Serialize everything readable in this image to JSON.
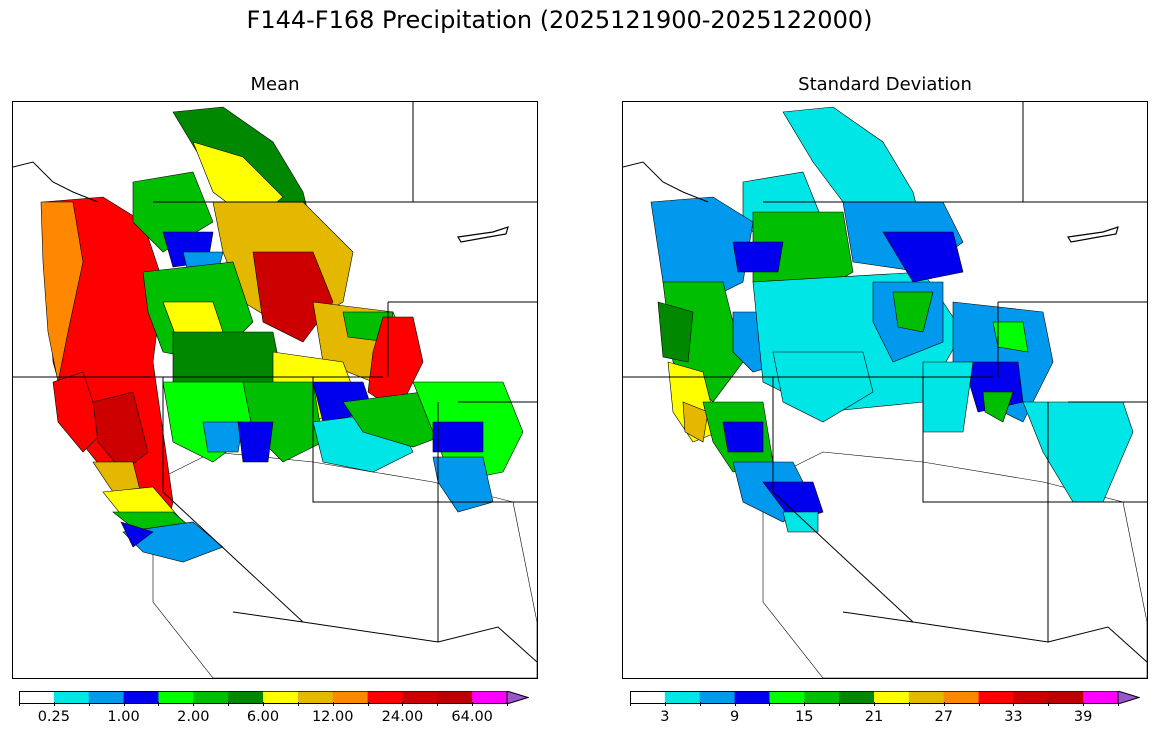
{
  "figure": {
    "title": "F144-F168 Precipitation (2025121900-2025122000)"
  },
  "panels": {
    "mean": {
      "title": "Mean",
      "colorbar": {
        "colors": [
          "#ffffff",
          "#00e5e5",
          "#0099ee",
          "#0000ee",
          "#00ff00",
          "#00bf00",
          "#008800",
          "#ffff00",
          "#e5b800",
          "#ff8800",
          "#ff0000",
          "#cc0000",
          "#bb0000",
          "#ff00ff",
          "#9955cc"
        ],
        "tick_labels": [
          "0.25",
          "1.00",
          "2.00",
          "6.00",
          "12.00",
          "24.00",
          "64.00"
        ],
        "extend": "max"
      }
    },
    "stddev": {
      "title": "Standard Deviation",
      "colorbar": {
        "colors": [
          "#ffffff",
          "#00e5e5",
          "#0099ee",
          "#0000ee",
          "#00ff00",
          "#00bf00",
          "#008800",
          "#ffff00",
          "#e5b800",
          "#ff8800",
          "#ff0000",
          "#cc0000",
          "#bb0000",
          "#ff00ff",
          "#9955cc"
        ],
        "tick_labels": [
          "3",
          "9",
          "15",
          "21",
          "27",
          "33",
          "39"
        ],
        "extend": "max"
      }
    }
  }
}
